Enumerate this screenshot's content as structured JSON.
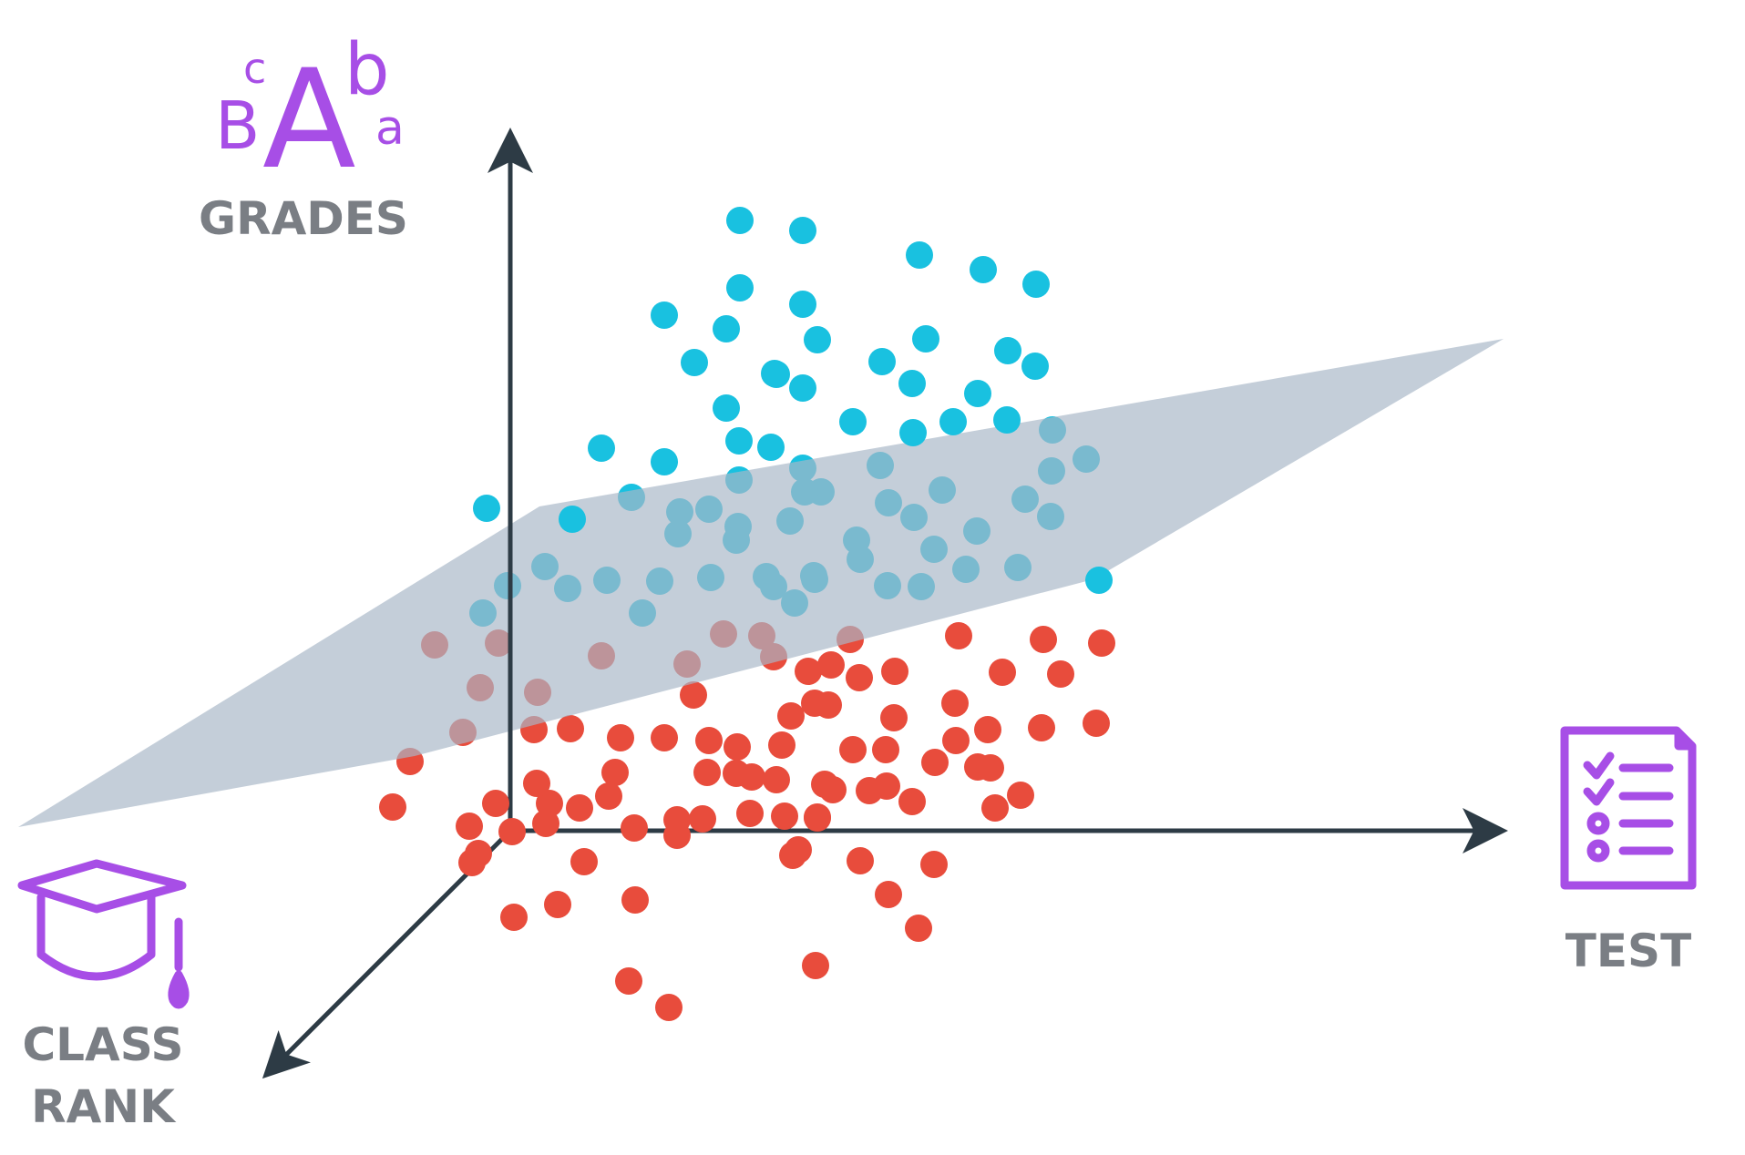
{
  "labels": {
    "grades": "GRADES",
    "test": "TEST",
    "class_rank_line1": "CLASS",
    "class_rank_line2": "RANK"
  },
  "grade_letters": {
    "big": "A",
    "upper_left": "c",
    "lower_left": "B",
    "upper_right": "b",
    "lower_right": "a"
  },
  "icons": {
    "grades": "grades-letters-icon",
    "test": "test-checklist-icon",
    "class_rank": "graduation-cap-icon"
  },
  "colors": {
    "blue_points": "#19c1e0",
    "red_points": "#e84c3c",
    "plane": "#a8b7c7",
    "axes": "#2d3b45",
    "icon_purple": "#a74ee6",
    "label_gray": "#7a7e84"
  }
}
